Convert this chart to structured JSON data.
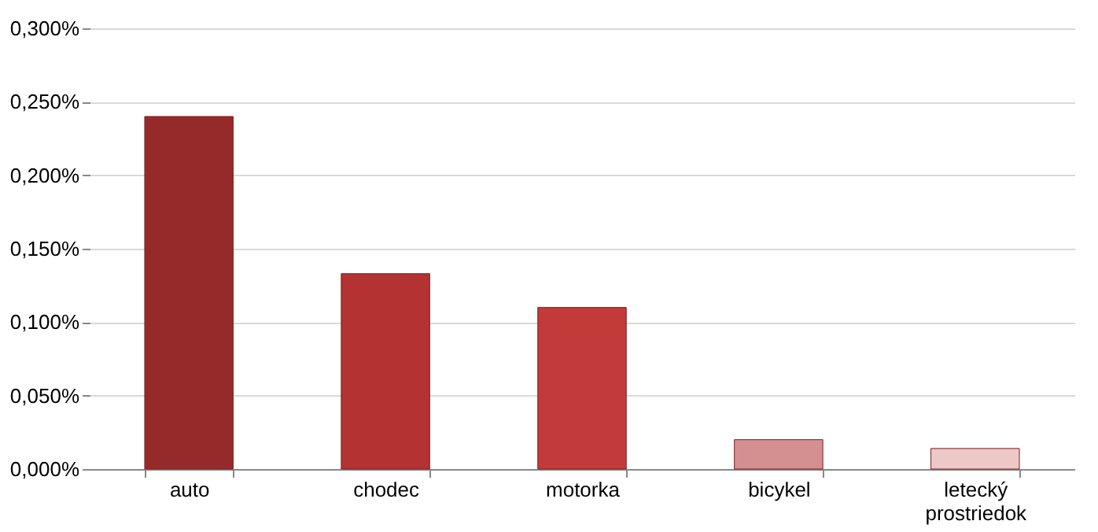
{
  "chart_data": {
    "type": "bar",
    "categories": [
      "auto",
      "chodec",
      "motorka",
      "bicykel",
      "letecký prostriedok"
    ],
    "values": [
      0.24,
      0.133,
      0.11,
      0.02,
      0.014
    ],
    "colors": [
      "#962a2a",
      "#b43232",
      "#c23a3a",
      "#d49090",
      "#ecc8c8"
    ],
    "ylim": [
      0,
      0.3
    ],
    "yticks": [
      {
        "value": 0,
        "label": "0,000%"
      },
      {
        "value": 0.05,
        "label": "0,050%"
      },
      {
        "value": 0.1,
        "label": "0,100%"
      },
      {
        "value": 0.15,
        "label": "0,150%"
      },
      {
        "value": 0.2,
        "label": "0,200%"
      },
      {
        "value": 0.25,
        "label": "0,250%"
      },
      {
        "value": 0.3,
        "label": "0,300%"
      }
    ],
    "grid": "y",
    "legend": false
  }
}
